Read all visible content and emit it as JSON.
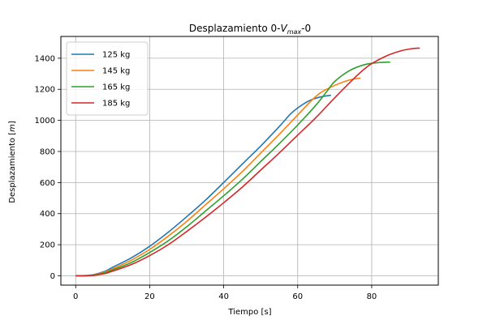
{
  "chart_data": {
    "type": "line",
    "title_main": "Desplazamiento 0-",
    "title_var": "V",
    "title_sub": "max",
    "title_end": "-0",
    "xlabel": "Tiempo [s]",
    "ylabel_pre": "Desplazamiento [",
    "ylabel_var": "m",
    "ylabel_post": "]",
    "xlim": [
      -4,
      98
    ],
    "ylim": [
      -60,
      1540
    ],
    "xticks": [
      0,
      20,
      40,
      60,
      80
    ],
    "yticks": [
      0,
      200,
      400,
      600,
      800,
      1000,
      1200,
      1400
    ],
    "grid": true,
    "legend_position": "top-left",
    "series": [
      {
        "name": "125 kg",
        "color": "#1f77b4",
        "points": [
          [
            0,
            0
          ],
          [
            3,
            2
          ],
          [
            5,
            8
          ],
          [
            8,
            30
          ],
          [
            10,
            55
          ],
          [
            15,
            115
          ],
          [
            20,
            190
          ],
          [
            25,
            280
          ],
          [
            30,
            380
          ],
          [
            35,
            485
          ],
          [
            40,
            600
          ],
          [
            45,
            718
          ],
          [
            50,
            835
          ],
          [
            55,
            960
          ],
          [
            58,
            1040
          ],
          [
            60,
            1080
          ],
          [
            63,
            1125
          ],
          [
            66,
            1150
          ],
          [
            69,
            1162
          ]
        ]
      },
      {
        "name": "145 kg",
        "color": "#ff7f0e",
        "points": [
          [
            0,
            0
          ],
          [
            3,
            1
          ],
          [
            5,
            6
          ],
          [
            8,
            25
          ],
          [
            10,
            45
          ],
          [
            15,
            100
          ],
          [
            20,
            170
          ],
          [
            25,
            255
          ],
          [
            30,
            350
          ],
          [
            35,
            455
          ],
          [
            40,
            560
          ],
          [
            45,
            670
          ],
          [
            50,
            790
          ],
          [
            55,
            910
          ],
          [
            60,
            1035
          ],
          [
            63,
            1110
          ],
          [
            66,
            1175
          ],
          [
            70,
            1225
          ],
          [
            74,
            1260
          ],
          [
            77,
            1272
          ]
        ]
      },
      {
        "name": "165 kg",
        "color": "#2ca02c",
        "points": [
          [
            0,
            0
          ],
          [
            3,
            1
          ],
          [
            5,
            4
          ],
          [
            8,
            20
          ],
          [
            10,
            38
          ],
          [
            15,
            85
          ],
          [
            20,
            150
          ],
          [
            25,
            225
          ],
          [
            30,
            315
          ],
          [
            35,
            415
          ],
          [
            40,
            515
          ],
          [
            45,
            620
          ],
          [
            50,
            735
          ],
          [
            55,
            850
          ],
          [
            60,
            970
          ],
          [
            65,
            1100
          ],
          [
            68,
            1190
          ],
          [
            70,
            1250
          ],
          [
            74,
            1320
          ],
          [
            78,
            1358
          ],
          [
            82,
            1372
          ],
          [
            85,
            1375
          ]
        ]
      },
      {
        "name": "185 kg",
        "color": "#d62728",
        "points": [
          [
            0,
            0
          ],
          [
            3,
            0
          ],
          [
            5,
            3
          ],
          [
            8,
            15
          ],
          [
            10,
            30
          ],
          [
            15,
            72
          ],
          [
            20,
            130
          ],
          [
            25,
            200
          ],
          [
            30,
            285
          ],
          [
            35,
            375
          ],
          [
            40,
            470
          ],
          [
            45,
            570
          ],
          [
            50,
            680
          ],
          [
            55,
            790
          ],
          [
            60,
            905
          ],
          [
            65,
            1020
          ],
          [
            70,
            1145
          ],
          [
            75,
            1265
          ],
          [
            78,
            1330
          ],
          [
            80,
            1365
          ],
          [
            84,
            1415
          ],
          [
            88,
            1448
          ],
          [
            91,
            1462
          ],
          [
            93,
            1465
          ]
        ]
      }
    ]
  }
}
